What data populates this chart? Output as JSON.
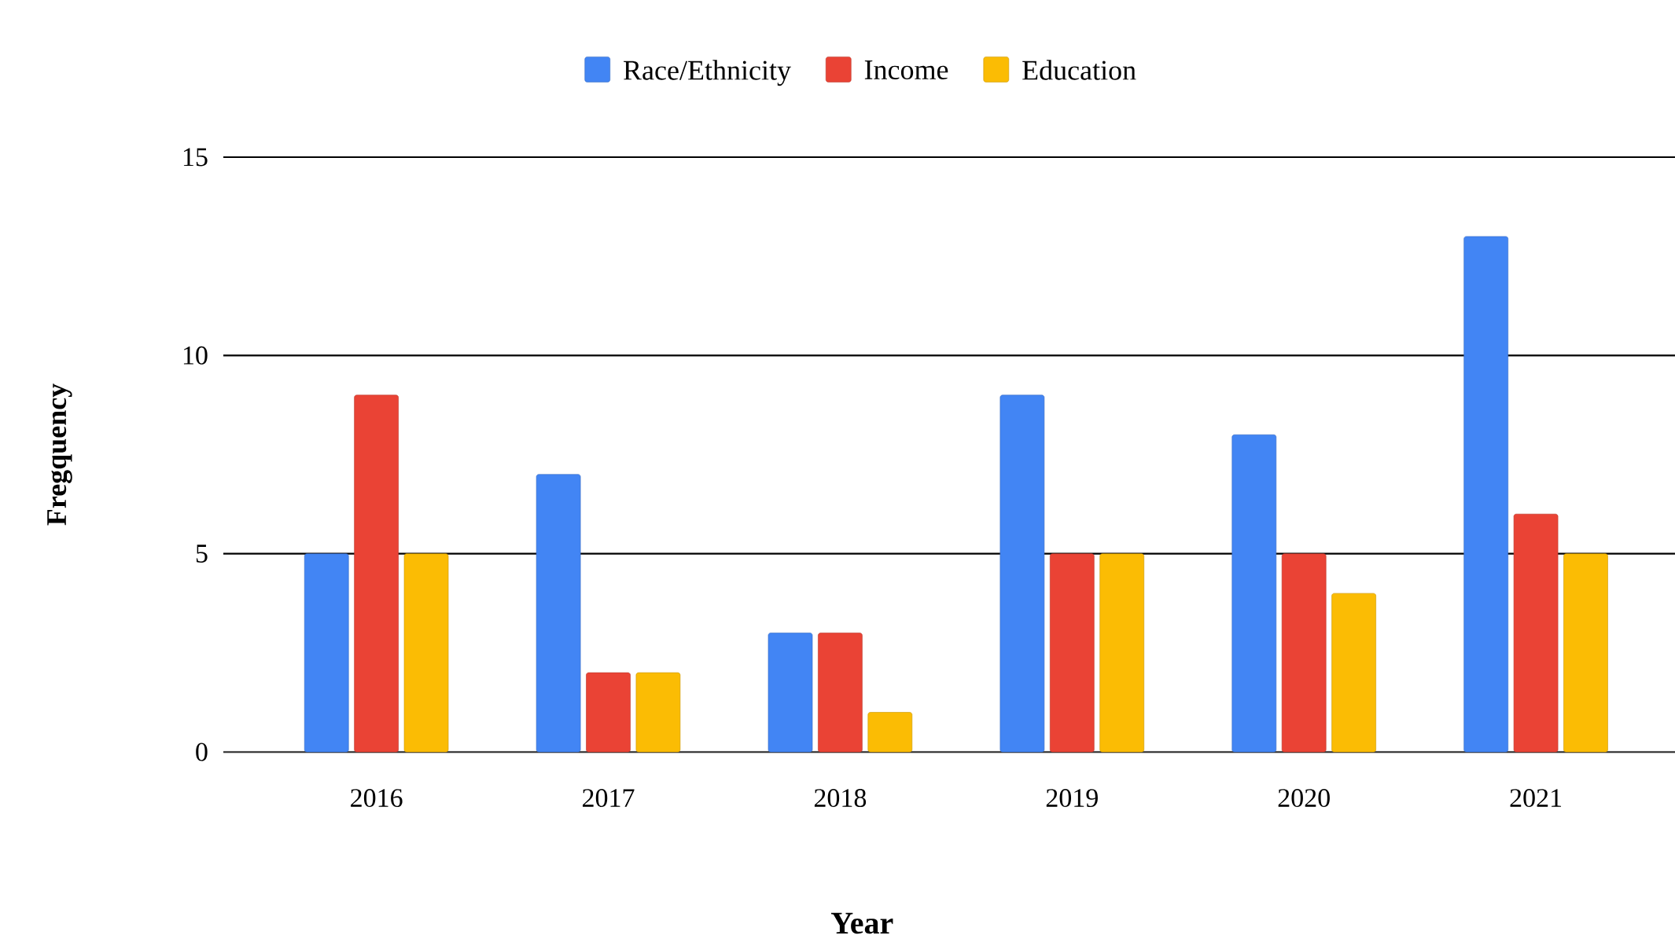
{
  "chart_data": {
    "type": "bar",
    "xlabel": "Year",
    "ylabel": "Fregquency",
    "categories": [
      "2016",
      "2017",
      "2018",
      "2019",
      "2020",
      "2021"
    ],
    "series": [
      {
        "name": "Race/Ethnicity",
        "color": "#4285f4",
        "values": [
          5,
          7,
          3,
          9,
          8,
          13
        ]
      },
      {
        "name": "Income",
        "color": "#ea4335",
        "values": [
          9,
          2,
          3,
          5,
          5,
          6
        ]
      },
      {
        "name": "Education",
        "color": "#fbbc04",
        "values": [
          5,
          2,
          1,
          5,
          4,
          5
        ]
      }
    ],
    "ylim": [
      0,
      15
    ],
    "yticks": [
      0,
      5,
      10,
      15
    ],
    "grid": "y",
    "legend": "top"
  }
}
